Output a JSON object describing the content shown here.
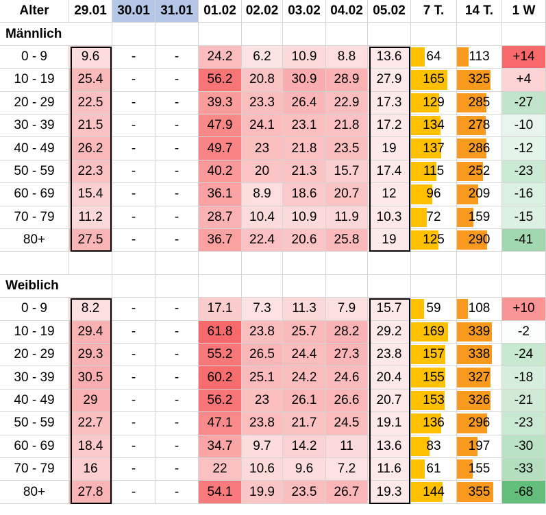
{
  "chart_data": {
    "type": "table",
    "header": [
      "Alter",
      "29.01",
      "30.01",
      "31.01",
      "01.02",
      "02.02",
      "03.02",
      "04.02",
      "05.02",
      "7 T.",
      "14 T.",
      "1 W"
    ],
    "highlighted_headers": [
      "30.01",
      "31.01"
    ],
    "sections": [
      {
        "title": "Männlich",
        "rows": [
          {
            "age": "0 - 9",
            "values": [
              "9.6",
              "-",
              "-",
              "24.2",
              "6.2",
              "10.9",
              "8.8",
              "13.6"
            ],
            "t7": "64",
            "t14": "113",
            "w1": "+14"
          },
          {
            "age": "10 - 19",
            "values": [
              "25.4",
              "-",
              "-",
              "56.2",
              "20.8",
              "30.9",
              "28.9",
              "27.9"
            ],
            "t7": "165",
            "t14": "325",
            "w1": "+4"
          },
          {
            "age": "20 - 29",
            "values": [
              "22.5",
              "-",
              "-",
              "39.3",
              "23.3",
              "26.4",
              "22.9",
              "17.3"
            ],
            "t7": "129",
            "t14": "285",
            "w1": "-27"
          },
          {
            "age": "30 - 39",
            "values": [
              "21.5",
              "-",
              "-",
              "47.9",
              "24.1",
              "23.1",
              "21.8",
              "17.2"
            ],
            "t7": "134",
            "t14": "278",
            "w1": "-10"
          },
          {
            "age": "40 - 49",
            "values": [
              "26.2",
              "-",
              "-",
              "49.7",
              "23",
              "21.8",
              "23.5",
              "19"
            ],
            "t7": "137",
            "t14": "286",
            "w1": "-12"
          },
          {
            "age": "50 - 59",
            "values": [
              "22.3",
              "-",
              "-",
              "40.2",
              "20",
              "21.3",
              "15.7",
              "17.4"
            ],
            "t7": "115",
            "t14": "252",
            "w1": "-23"
          },
          {
            "age": "60 - 69",
            "values": [
              "15.4",
              "-",
              "-",
              "36.1",
              "8.9",
              "18.6",
              "20.7",
              "12"
            ],
            "t7": "96",
            "t14": "209",
            "w1": "-16"
          },
          {
            "age": "70 - 79",
            "values": [
              "11.2",
              "-",
              "-",
              "28.7",
              "10.4",
              "10.9",
              "11.9",
              "10.3"
            ],
            "t7": "72",
            "t14": "159",
            "w1": "-15"
          },
          {
            "age": "80+",
            "values": [
              "27.5",
              "-",
              "-",
              "36.7",
              "22.4",
              "20.6",
              "25.8",
              "19"
            ],
            "t7": "125",
            "t14": "290",
            "w1": "-41"
          }
        ]
      },
      {
        "title": "Weiblich",
        "rows": [
          {
            "age": "0 - 9",
            "values": [
              "8.2",
              "-",
              "-",
              "17.1",
              "7.3",
              "11.3",
              "7.9",
              "15.7"
            ],
            "t7": "59",
            "t14": "108",
            "w1": "+10"
          },
          {
            "age": "10 - 19",
            "values": [
              "29.4",
              "-",
              "-",
              "61.8",
              "23.8",
              "25.7",
              "28.2",
              "29.2"
            ],
            "t7": "169",
            "t14": "339",
            "w1": "-2"
          },
          {
            "age": "20 - 29",
            "values": [
              "29.3",
              "-",
              "-",
              "55.2",
              "26.5",
              "24.4",
              "27.3",
              "23.8"
            ],
            "t7": "157",
            "t14": "338",
            "w1": "-24"
          },
          {
            "age": "30 - 39",
            "values": [
              "30.5",
              "-",
              "-",
              "60.2",
              "25.1",
              "24.2",
              "24.6",
              "20.4"
            ],
            "t7": "155",
            "t14": "327",
            "w1": "-18"
          },
          {
            "age": "40 - 49",
            "values": [
              "29",
              "-",
              "-",
              "56.2",
              "23",
              "26.1",
              "26.6",
              "20.7"
            ],
            "t7": "153",
            "t14": "326",
            "w1": "-21"
          },
          {
            "age": "50 - 59",
            "values": [
              "22.7",
              "-",
              "-",
              "47.1",
              "23.8",
              "21.7",
              "24.5",
              "19.1"
            ],
            "t7": "136",
            "t14": "296",
            "w1": "-23"
          },
          {
            "age": "60 - 69",
            "values": [
              "18.4",
              "-",
              "-",
              "34.7",
              "9.7",
              "14.2",
              "11",
              "13.6"
            ],
            "t7": "83",
            "t14": "197",
            "w1": "-30"
          },
          {
            "age": "70 - 79",
            "values": [
              "16",
              "-",
              "-",
              "22",
              "10.6",
              "9.6",
              "7.2",
              "11.6"
            ],
            "t7": "61",
            "t14": "155",
            "w1": "-33"
          },
          {
            "age": "80+",
            "values": [
              "27.8",
              "-",
              "-",
              "54.1",
              "19.9",
              "23.5",
              "26.7",
              "19.3"
            ],
            "t7": "144",
            "t14": "355",
            "w1": "-68"
          }
        ]
      }
    ],
    "heat_color_min": "#fce4e4",
    "heat_color_max": "#f8696b",
    "bar_color_7t": "#ffc000",
    "bar_color_14t": "#f79a1d",
    "pos_color_1w": "#f8696b",
    "neg_color_1w": "#63be7b",
    "boxed_columns": [
      "29.01",
      "05.02"
    ]
  }
}
